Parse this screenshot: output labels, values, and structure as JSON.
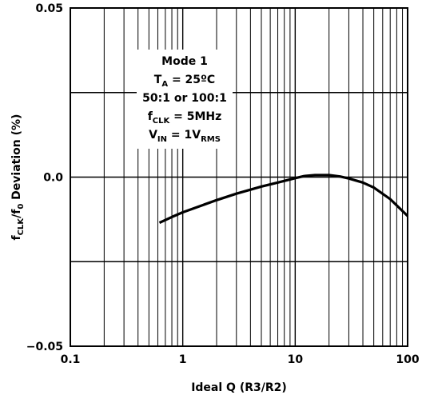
{
  "chart_data": {
    "type": "line",
    "xscale": "log",
    "xlim": [
      0.1,
      100
    ],
    "ylim": [
      -0.05,
      0.05
    ],
    "x_ticks": [
      {
        "value": 0.1,
        "label": "0.1"
      },
      {
        "value": 1,
        "label": "1"
      },
      {
        "value": 10,
        "label": "10"
      },
      {
        "value": 100,
        "label": "100"
      }
    ],
    "y_ticks": [
      {
        "value": 0.05,
        "label": "0.05"
      },
      {
        "value": 0.0,
        "label": "0.0"
      },
      {
        "value": -0.05,
        "label": "−0.05"
      }
    ],
    "y_major_gridlines": [
      0.025,
      0.0,
      -0.025
    ],
    "xlabel": "Ideal Q (R3/R2)",
    "ylabel_parts": {
      "f1": "f",
      "sub1": "CLK",
      "slash": "/f",
      "sub2": "0",
      "rest": " Deviation (%)"
    },
    "annotation_lines": [
      [
        {
          "t": "Mode 1"
        }
      ],
      [
        {
          "t": "T"
        },
        {
          "t": "A",
          "sub": true
        },
        {
          "t": " = 25ºC"
        }
      ],
      [
        {
          "t": "50:1 or 100:1"
        }
      ],
      [
        {
          "t": "f"
        },
        {
          "t": "CLK",
          "sub": true
        },
        {
          "t": " = 5MHz"
        }
      ],
      [
        {
          "t": "V"
        },
        {
          "t": "IN",
          "sub": true
        },
        {
          "t": " = 1V"
        },
        {
          "t": "RMS",
          "sub": true
        }
      ]
    ],
    "grid": true,
    "series": [
      {
        "x": [
          0.62,
          0.8,
          1.0,
          1.5,
          2.0,
          3.0,
          5.0,
          7.0,
          10,
          12,
          15,
          20,
          25,
          30,
          40,
          50,
          70,
          100
        ],
        "y": [
          -0.0135,
          -0.0118,
          -0.0104,
          -0.0083,
          -0.0068,
          -0.0049,
          -0.0028,
          -0.0016,
          -0.0003,
          0.0003,
          0.0006,
          0.0006,
          0.0002,
          -0.0004,
          -0.0016,
          -0.0031,
          -0.0065,
          -0.0115
        ]
      }
    ]
  }
}
